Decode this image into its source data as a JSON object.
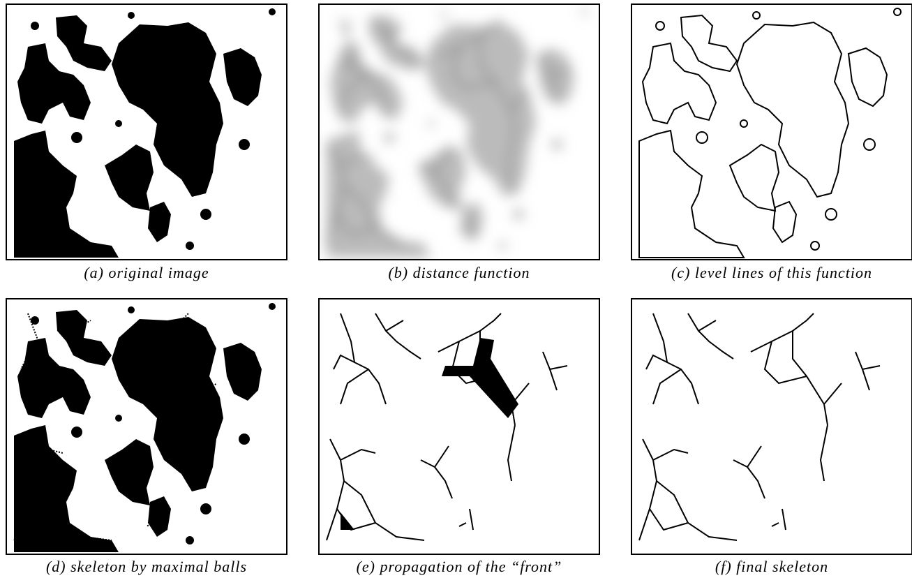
{
  "captions": [
    "(a) original image",
    "(b) distance function",
    "(c) level lines of this function",
    "(d) skeleton by maximal balls",
    "(e) propagation of the “front”",
    "(f) final skeleton"
  ]
}
